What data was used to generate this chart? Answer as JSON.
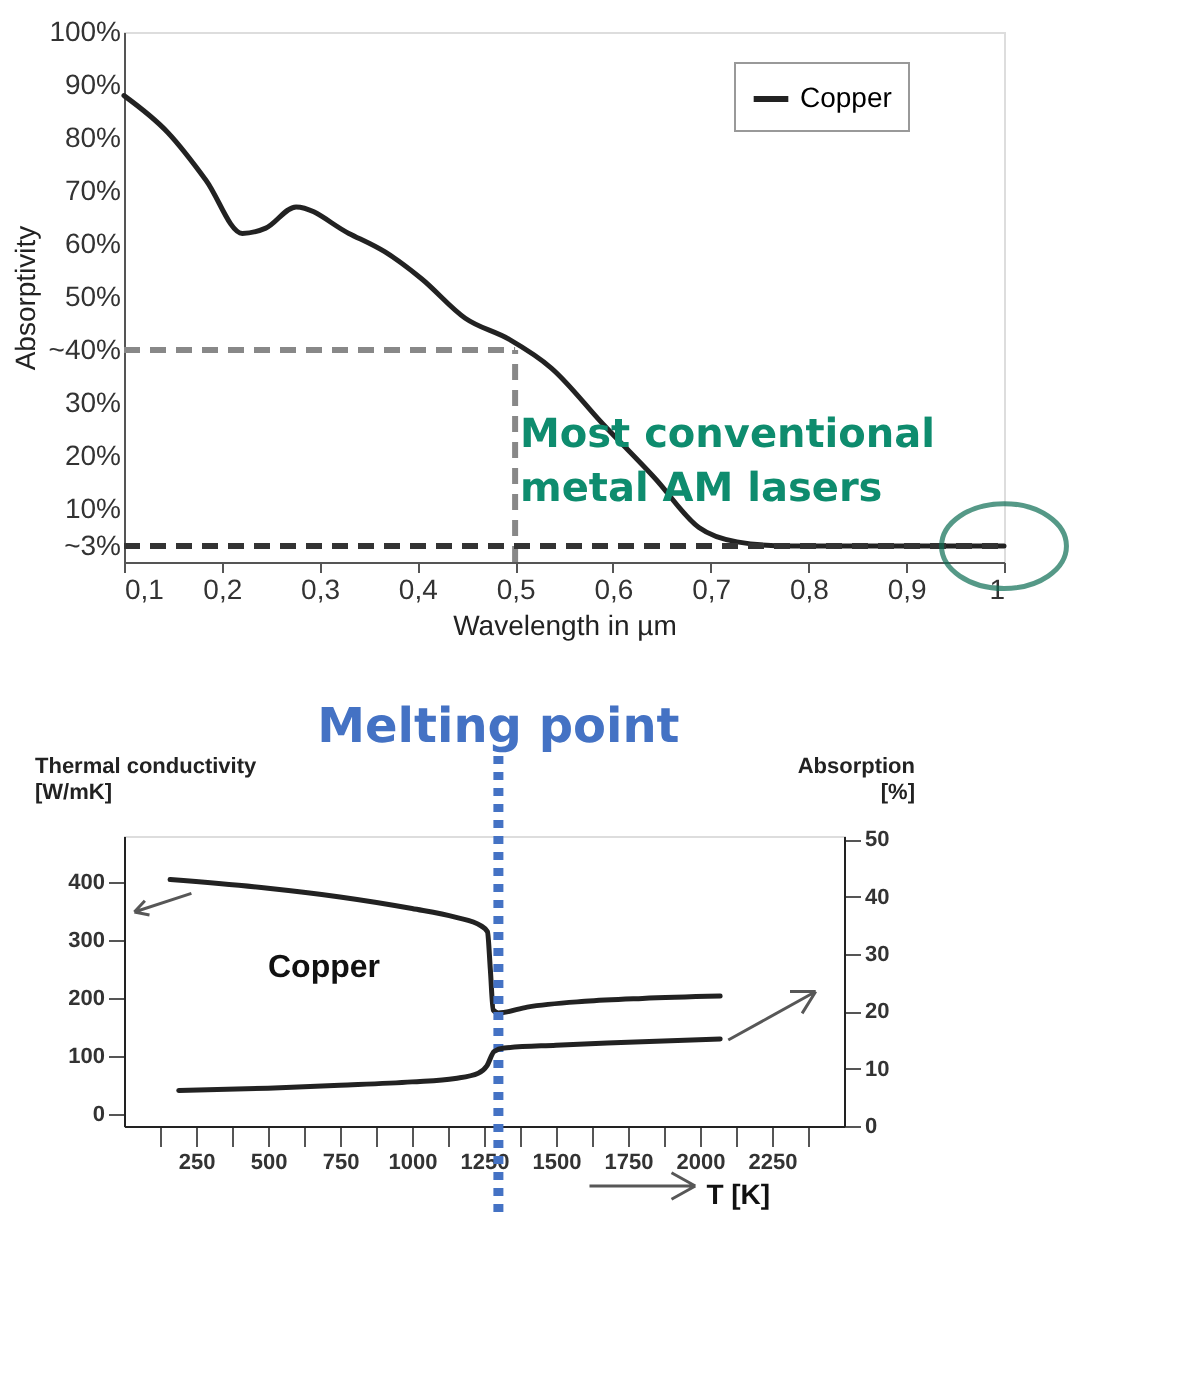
{
  "chart_data": [
    {
      "type": "line",
      "xlabel": "Wavelength in µm",
      "ylabel": "Absorptivity",
      "xlim": [
        0.1,
        1
      ],
      "ylim": [
        0,
        100
      ],
      "xticks": [
        {
          "value": 0.1,
          "label": "0,1"
        },
        {
          "value": 0.2,
          "label": "0,2"
        },
        {
          "value": 0.3,
          "label": "0,3"
        },
        {
          "value": 0.4,
          "label": "0,4"
        },
        {
          "value": 0.5,
          "label": "0,5"
        },
        {
          "value": 0.6,
          "label": "0,6"
        },
        {
          "value": 0.7,
          "label": "0,7"
        },
        {
          "value": 0.8,
          "label": "0,8"
        },
        {
          "value": 0.9,
          "label": "0,9"
        },
        {
          "value": 1,
          "label": "1"
        }
      ],
      "yticks": [
        {
          "value": 3,
          "label": "~3%"
        },
        {
          "value": 10,
          "label": "10%"
        },
        {
          "value": 20,
          "label": "20%"
        },
        {
          "value": 30,
          "label": "30%"
        },
        {
          "value": 40,
          "label": "~40%"
        },
        {
          "value": 50,
          "label": "50%"
        },
        {
          "value": 60,
          "label": "60%"
        },
        {
          "value": 70,
          "label": "70%"
        },
        {
          "value": 80,
          "label": "80%"
        },
        {
          "value": 90,
          "label": "90%"
        },
        {
          "value": 100,
          "label": "100%"
        }
      ],
      "series": [
        {
          "name": "Copper",
          "color": "#222222",
          "x": [
            0.1,
            0.145,
            0.184,
            0.221,
            0.245,
            0.276,
            0.33,
            0.367,
            0.404,
            0.449,
            0.494,
            0.537,
            0.59,
            0.643,
            0.688,
            0.727,
            0.78,
            0.85,
            0.9,
            1
          ],
          "values": [
            88,
            81,
            72,
            62,
            63,
            67,
            62,
            58.5,
            53.5,
            46,
            42,
            36.6,
            26,
            15.8,
            6.5,
            3.8,
            3,
            3,
            3,
            3
          ]
        }
      ],
      "legend": "top right",
      "marker": "none",
      "line_style": "solid",
      "ref_lines": [
        {
          "axis": "y",
          "value": 40,
          "color": "#888888",
          "line_style": "dashed"
        },
        {
          "axis": "x",
          "value": 0.5,
          "color": "#888888",
          "line_style": "dashed"
        },
        {
          "axis": "y",
          "value": 3,
          "color": "#333333",
          "line_style": "dashed"
        }
      ],
      "annotations": [
        "Most conventional metal AM lasers"
      ]
    },
    {
      "type": "line",
      "xlabel": "T [K]",
      "ylabel": "Thermal conductivity [W/mK]",
      "y2label": "Absorption [%]",
      "xlim": [
        0,
        2500
      ],
      "ylim": [
        -20,
        480
      ],
      "y2lim": [
        0,
        50.6
      ],
      "xticks": [
        {
          "value": 125,
          "label": null
        },
        250,
        {
          "value": 375,
          "label": null
        },
        500,
        {
          "value": 625,
          "label": null
        },
        750,
        {
          "value": 875,
          "label": null
        },
        1000,
        {
          "value": 1125,
          "label": null
        },
        1250,
        {
          "value": 1375,
          "label": null
        },
        1500,
        {
          "value": 1625,
          "label": null
        },
        1750,
        {
          "value": 1875,
          "label": null
        },
        2000,
        {
          "value": 2125,
          "label": null
        },
        2250,
        {
          "value": 2375,
          "label": null
        }
      ],
      "yticks": [
        0,
        100,
        200,
        300,
        400
      ],
      "y2ticks": [
        0,
        10,
        20,
        30,
        40,
        50
      ],
      "series": [
        {
          "color": "#222222",
          "x": [
            160,
            500,
            750,
            1000,
            1150,
            1240,
            1262,
            1272,
            1282,
            1300,
            1400,
            1600,
            1800,
            2070
          ],
          "values": [
            405,
            390,
            375,
            355,
            340,
            325,
            315,
            250,
            180,
            175,
            185,
            195,
            200,
            204
          ]
        },
        {
          "color": "#222222",
          "axis": "y2",
          "x": [
            190,
            500,
            750,
            1000,
            1150,
            1230,
            1260,
            1285,
            1320,
            1500,
            1750,
            2070
          ],
          "values": [
            6.2,
            6.6,
            7.1,
            7.7,
            8.3,
            9.2,
            10.5,
            13,
            13.6,
            14.1,
            14.6,
            15.2
          ]
        }
      ],
      "legend": false,
      "marker": "none",
      "line_style": "solid",
      "ref_lines": [
        {
          "axis": "x",
          "value": 1300,
          "label": "Melting point",
          "color": "#4472c4",
          "line_style": "dotted"
        }
      ],
      "annotations": [
        "Copper"
      ]
    }
  ]
}
